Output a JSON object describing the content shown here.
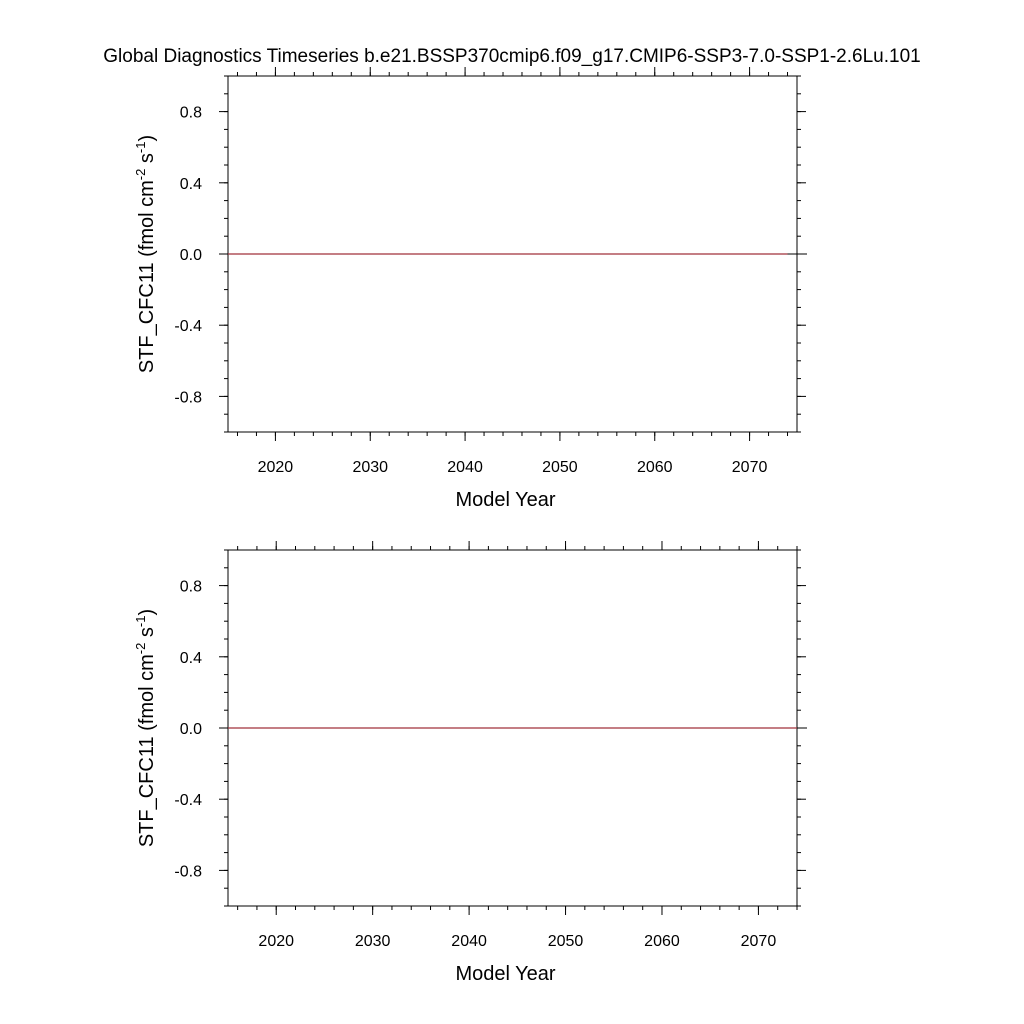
{
  "title": "Global Diagnostics Timeseries b.e21.BSSP370cmip6.f09_g17.CMIP6-SSP3-7.0-SSP1-2.6Lu.101",
  "chart_data": [
    {
      "type": "line",
      "xlabel": "Model Year",
      "ylabel": {
        "base": "STF_CFC11 (fmol cm",
        "exp1": "-2",
        "mid": " s",
        "exp2": "-1",
        "end": ")"
      },
      "xlim": [
        2015,
        2075
      ],
      "ylim": [
        -1.0,
        1.0
      ],
      "x_ticks": [
        2020,
        2030,
        2040,
        2050,
        2060,
        2070
      ],
      "x_tick_labels": [
        "2020",
        "2030",
        "2040",
        "2050",
        "2060",
        "2070"
      ],
      "y_ticks": [
        0.8,
        0.4,
        0.0,
        -0.4,
        -0.8
      ],
      "y_tick_labels": [
        "0.8",
        "0.4",
        "0.0",
        "-0.4",
        "-0.8"
      ],
      "grid": false,
      "reference_line": {
        "y": 0.0,
        "color": "#000000"
      },
      "series": [
        {
          "color": "#a0303a",
          "x": [
            2015,
            2074
          ],
          "y": [
            0.0,
            0.0
          ]
        }
      ]
    },
    {
      "type": "line",
      "xlabel": "Model Year",
      "ylabel": {
        "base": "STF_CFC11 (fmol cm",
        "exp1": "-2",
        "mid": " s",
        "exp2": "-1",
        "end": ")"
      },
      "xlim": [
        2015,
        2074
      ],
      "ylim": [
        -1.0,
        1.0
      ],
      "x_ticks": [
        2020,
        2030,
        2040,
        2050,
        2060,
        2070
      ],
      "x_tick_labels": [
        "2020",
        "2030",
        "2040",
        "2050",
        "2060",
        "2070"
      ],
      "y_ticks": [
        0.8,
        0.4,
        0.0,
        -0.4,
        -0.8
      ],
      "y_tick_labels": [
        "0.8",
        "0.4",
        "0.0",
        "-0.4",
        "-0.8"
      ],
      "grid": false,
      "reference_line": {
        "y": 0.0,
        "color": "#000000"
      },
      "series": [
        {
          "color": "#a0303a",
          "x": [
            2015,
            2074
          ],
          "y": [
            0.0,
            0.0
          ]
        }
      ]
    }
  ]
}
